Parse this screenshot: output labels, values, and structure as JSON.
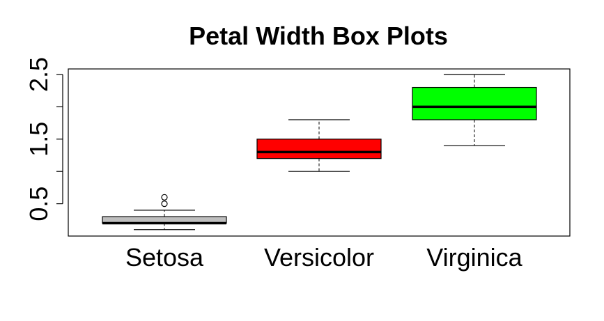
{
  "chart_data": {
    "type": "box",
    "title": "Petal Width Box Plots",
    "xlabel": "",
    "ylabel": "",
    "categories": [
      "Setosa",
      "Versicolor",
      "Virginica"
    ],
    "ylim": [
      0,
      2.5
    ],
    "y_ticks": [
      0.5,
      1.0,
      1.5,
      2.0,
      2.5
    ],
    "y_tick_labels": [
      "0.5",
      "",
      "1.5",
      "",
      "2.5"
    ],
    "boxes": [
      {
        "category": "Setosa",
        "min": 0.1,
        "q1": 0.2,
        "median": 0.2,
        "q3": 0.3,
        "max": 0.4,
        "outliers": [
          0.5,
          0.6
        ],
        "color": "#BEBEBE"
      },
      {
        "category": "Versicolor",
        "min": 1.0,
        "q1": 1.2,
        "median": 1.3,
        "q3": 1.5,
        "max": 1.8,
        "outliers": [],
        "color": "#FF0000"
      },
      {
        "category": "Virginica",
        "min": 1.4,
        "q1": 1.8,
        "median": 2.0,
        "q3": 2.3,
        "max": 2.5,
        "outliers": [],
        "color": "#00FF00"
      }
    ],
    "grid": false,
    "legend": "none"
  }
}
